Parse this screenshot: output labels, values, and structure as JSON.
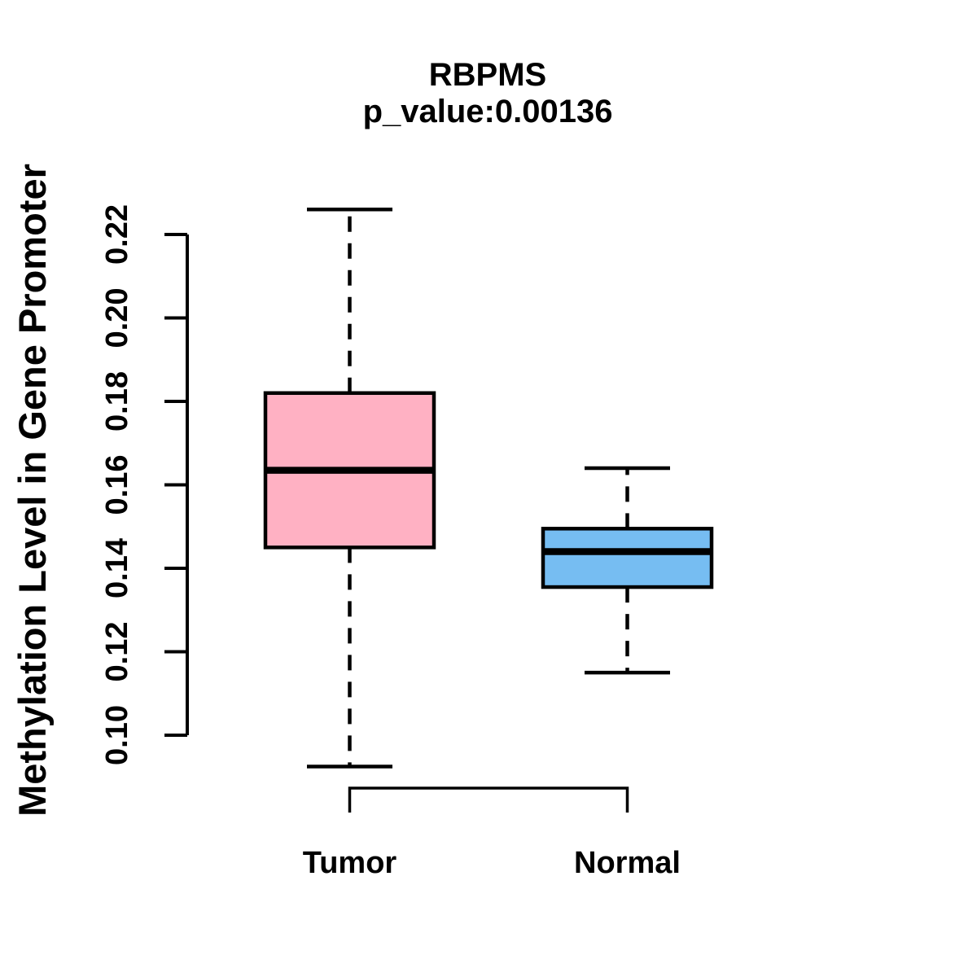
{
  "title": "RBPMS",
  "subtitle": "p_value:0.00136",
  "chart_data": {
    "type": "boxplot",
    "title": "RBPMS",
    "subtitle": "p_value:0.00136",
    "ylabel": "Methylation Level in Gene Promoter",
    "xlabel": "",
    "categories": [
      "Tumor",
      "Normal"
    ],
    "series": [
      {
        "name": "Tumor",
        "color": "#FFB1C3",
        "whisker_low": 0.0925,
        "q1": 0.145,
        "median": 0.1635,
        "q3": 0.182,
        "whisker_high": 0.226
      },
      {
        "name": "Normal",
        "color": "#76BDF2",
        "whisker_low": 0.115,
        "q1": 0.1355,
        "median": 0.144,
        "q3": 0.1495,
        "whisker_high": 0.164
      }
    ],
    "ylim": [
      0.1,
      0.22
    ],
    "yticks": [
      0.1,
      0.12,
      0.14,
      0.16,
      0.18,
      0.2,
      0.22
    ],
    "ytick_labels": [
      "0.10",
      "0.12",
      "0.14",
      "0.16",
      "0.18",
      "0.20",
      "0.22"
    ],
    "grid": false,
    "legend": "none",
    "comparison_bracket": {
      "from": "Tumor",
      "to": "Normal"
    },
    "stroke_color": "#000000",
    "whisker_style": "dashed"
  }
}
